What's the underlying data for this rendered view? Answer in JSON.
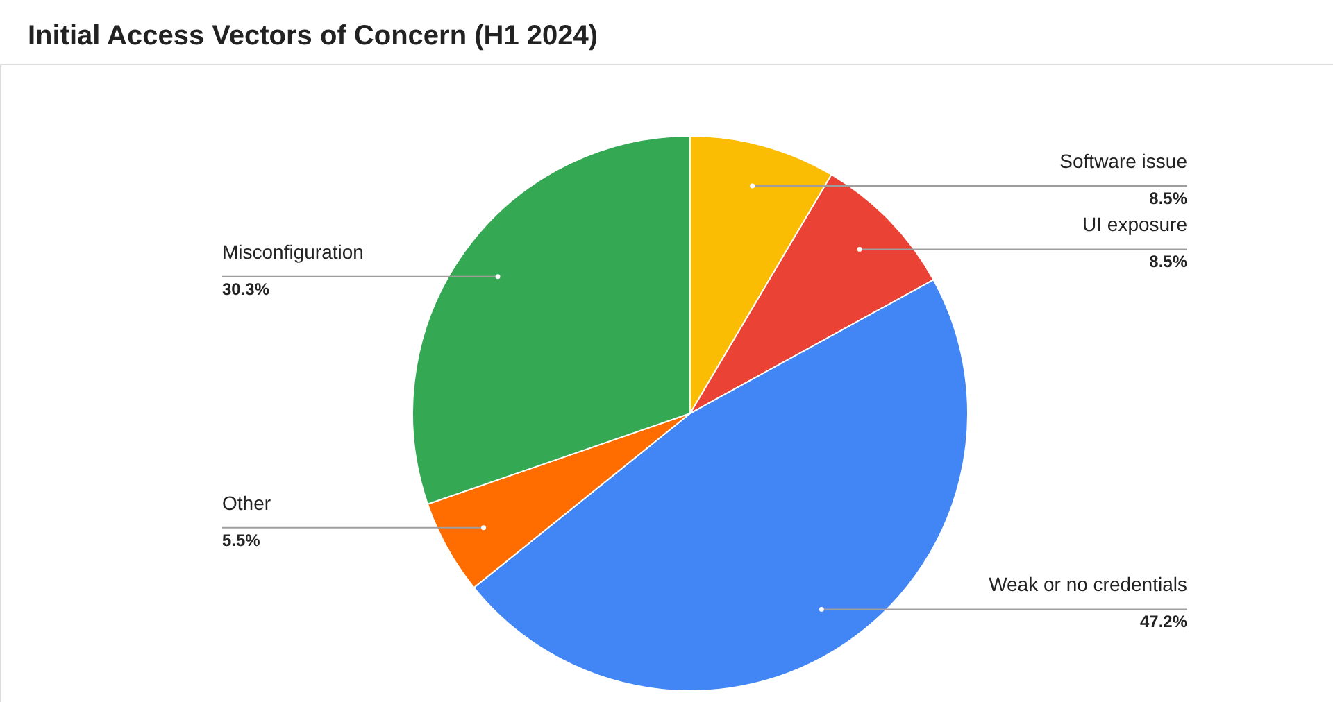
{
  "chart_data": {
    "type": "pie",
    "title": "Initial Access Vectors of Concern (H1 2024)",
    "categories": [
      "Software issue",
      "UI exposure",
      "Weak or no credentials",
      "Other",
      "Misconfiguration"
    ],
    "values": [
      8.5,
      8.5,
      47.2,
      5.5,
      30.3
    ],
    "value_labels": [
      "8.5%",
      "8.5%",
      "47.2%",
      "5.5%",
      "30.3%"
    ],
    "colors": [
      "#fbbc04",
      "#ea4335",
      "#4285f4",
      "#ff6d01",
      "#34a853"
    ],
    "legend": false
  }
}
